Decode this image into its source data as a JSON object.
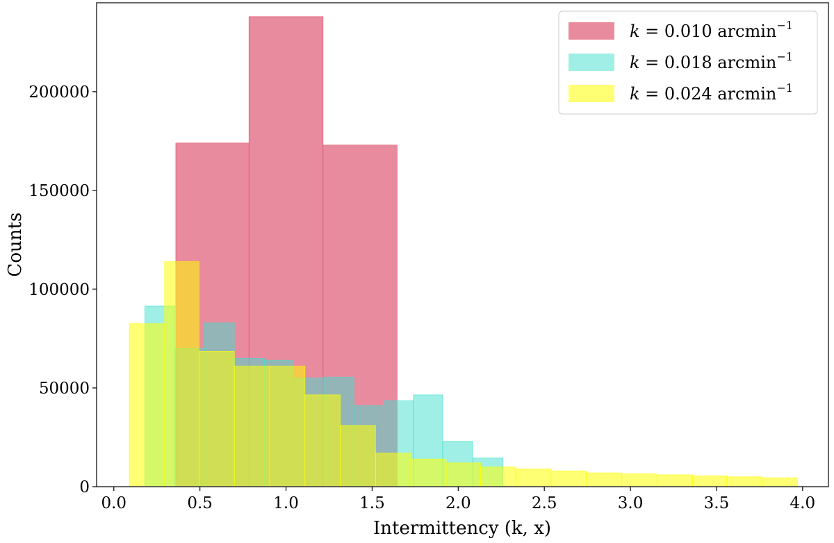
{
  "chart_data": {
    "type": "bar",
    "xlabel": "Intermittency (k, x)",
    "ylabel": "Counts",
    "xlim": [
      -0.1,
      4.15
    ],
    "ylim": [
      0,
      245000
    ],
    "x_ticks": [
      "0.0",
      "0.5",
      "1.0",
      "1.5",
      "2.0",
      "2.5",
      "3.0",
      "3.5",
      "4.0"
    ],
    "x_tick_values": [
      0.0,
      0.5,
      1.0,
      1.5,
      2.0,
      2.5,
      3.0,
      3.5,
      4.0
    ],
    "y_ticks": [
      "0",
      "50000",
      "100000",
      "150000",
      "200000"
    ],
    "y_tick_values": [
      0,
      50000,
      100000,
      150000,
      200000
    ],
    "legend_position": "top-right",
    "series": [
      {
        "name": "k = 0.010 arcmin⁻¹",
        "legend_k": "k",
        "legend_value": " = 0.010 arcmin",
        "legend_exp": "−1",
        "color": "#e05a75",
        "opacity": 0.7,
        "bin_edges": [
          0.36,
          0.785,
          1.215,
          1.645
        ],
        "values": [
          174000,
          238000,
          173000
        ]
      },
      {
        "name": "k = 0.018 arcmin⁻¹",
        "legend_k": "k",
        "legend_value": " = 0.018 arcmin",
        "legend_exp": "−1",
        "color": "#40e0d0",
        "opacity": 0.5,
        "bin_edges": [
          0.18,
          0.355,
          0.525,
          0.7,
          0.875,
          1.045,
          1.22,
          1.395,
          1.565,
          1.74,
          1.91,
          2.085,
          2.26
        ],
        "values": [
          91500,
          70000,
          83000,
          65000,
          64000,
          55000,
          55500,
          41000,
          43500,
          46500,
          23000,
          14500
        ]
      },
      {
        "name": "k = 0.024 arcmin⁻¹",
        "legend_k": "k",
        "legend_value": " = 0.024 arcmin",
        "legend_exp": "−1",
        "color": "#ffff00",
        "opacity": 0.55,
        "bin_edges": [
          0.09,
          0.295,
          0.495,
          0.7,
          0.905,
          1.11,
          1.315,
          1.52,
          1.725,
          1.93,
          2.13,
          2.335,
          2.54,
          2.745,
          2.95,
          3.155,
          3.36,
          3.56,
          3.765,
          3.97
        ],
        "values": [
          82500,
          114000,
          68500,
          61000,
          61000,
          46500,
          31000,
          17000,
          14000,
          12000,
          10000,
          9000,
          8000,
          7000,
          6500,
          6000,
          5500,
          5000,
          4500
        ]
      }
    ]
  }
}
